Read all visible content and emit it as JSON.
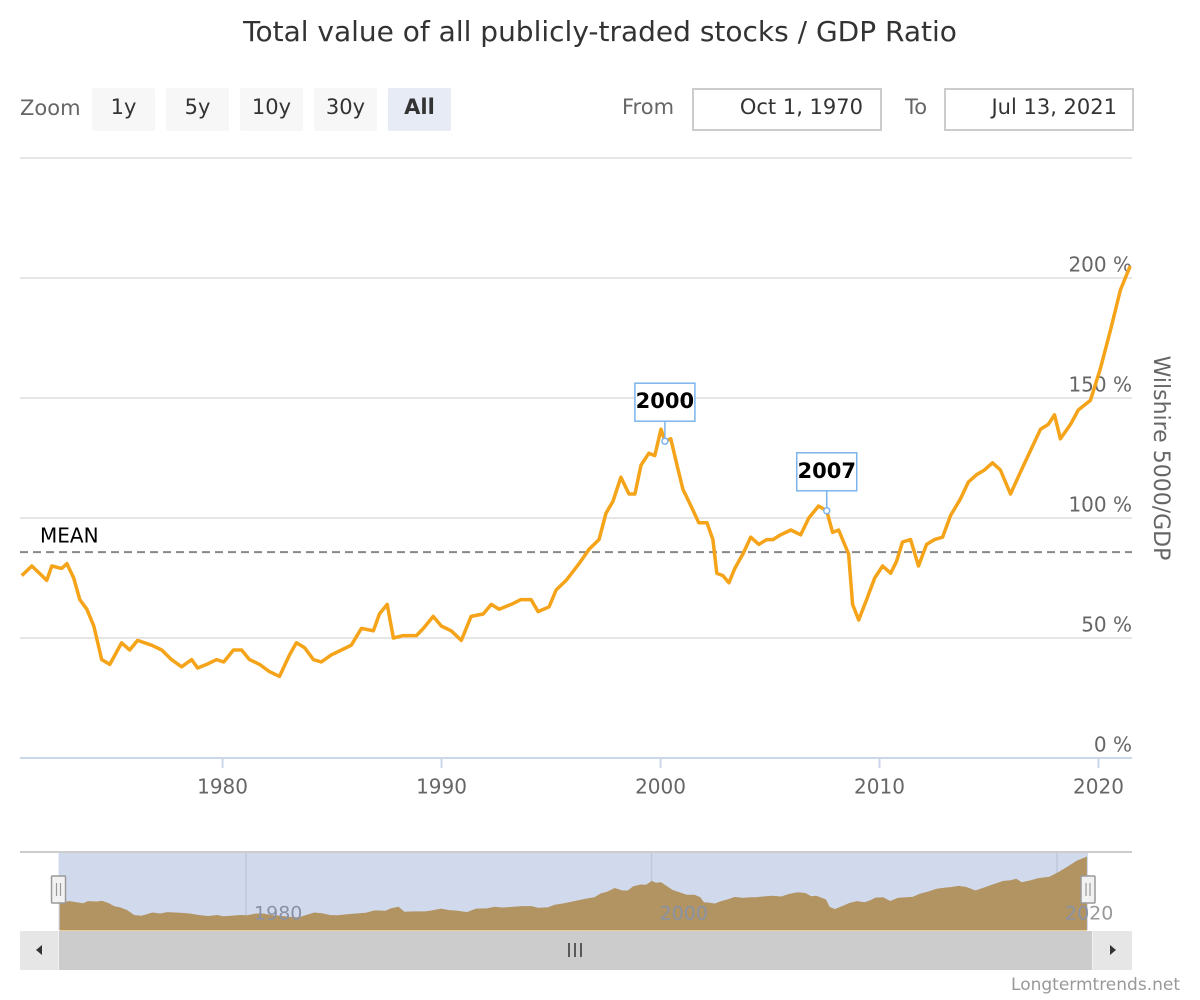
{
  "chart_data": {
    "type": "line",
    "title": "Total value of all publicly-traded stocks / GDP Ratio",
    "y_axis_title": "Wilshire 5000/GDP",
    "color": "#f5a319",
    "x": [
      1970.83,
      1971.29,
      1971.75,
      1971.97,
      1972.2,
      1972.66,
      1972.89,
      1973.2,
      1973.48,
      1973.8,
      1974.12,
      1974.48,
      1974.85,
      1975.39,
      1975.76,
      1976.12,
      1976.76,
      1977.22,
      1977.67,
      1978.13,
      1978.59,
      1978.86,
      1979.27,
      1979.73,
      1980.05,
      1980.5,
      1980.87,
      1981.23,
      1981.69,
      1982.14,
      1982.6,
      1983.06,
      1983.37,
      1983.74,
      1984.15,
      1984.51,
      1984.97,
      1985.43,
      1985.88,
      1986.34,
      1986.89,
      1987.16,
      1987.52,
      1987.8,
      1988.25,
      1988.85,
      1989.17,
      1989.62,
      1989.99,
      1990.44,
      1990.9,
      1991.35,
      1991.9,
      1992.27,
      1992.63,
      1993.18,
      1993.63,
      1994.09,
      1994.41,
      1994.91,
      1995.23,
      1995.69,
      1996.28,
      1996.74,
      1997.19,
      1997.51,
      1997.83,
      1998.19,
      1998.56,
      1998.83,
      1999.11,
      1999.47,
      1999.74,
      2000.02,
      2000.2,
      2000.47,
      2000.75,
      2001.02,
      2001.39,
      2001.75,
      2002.12,
      2002.39,
      2002.57,
      2002.85,
      2003.12,
      2003.39,
      2003.76,
      2004.12,
      2004.49,
      2004.85,
      2005.13,
      2005.49,
      2005.95,
      2006.4,
      2006.77,
      2007.22,
      2007.59,
      2007.86,
      2008.13,
      2008.59,
      2008.77,
      2009.05,
      2009.41,
      2009.78,
      2010.14,
      2010.51,
      2010.78,
      2011.05,
      2011.42,
      2011.78,
      2012.15,
      2012.51,
      2012.88,
      2013.24,
      2013.7,
      2014.06,
      2014.43,
      2014.79,
      2015.16,
      2015.52,
      2015.98,
      2016.43,
      2016.89,
      2017.35,
      2017.71,
      2017.99,
      2018.26,
      2018.72,
      2019.08,
      2019.63,
      2020.08,
      2020.54,
      2021.0,
      2021.45
    ],
    "values": [
      76,
      80,
      76,
      74,
      80,
      79,
      81,
      75,
      66,
      62,
      55,
      41,
      39,
      48,
      45,
      49,
      47,
      45,
      41,
      38,
      41,
      37.5,
      39,
      41,
      40,
      45,
      45,
      41,
      39,
      36,
      34,
      43,
      48,
      46,
      41,
      40,
      43,
      45,
      47,
      54,
      53,
      60,
      64,
      50,
      51,
      51,
      54,
      59,
      55,
      53,
      49,
      59,
      60,
      64,
      62,
      64,
      66,
      66,
      61,
      63,
      70,
      74,
      81,
      87,
      91,
      102,
      107,
      117,
      110,
      110,
      122,
      127,
      126,
      137,
      132,
      133,
      122,
      112,
      105,
      98,
      98,
      91,
      77,
      76,
      73,
      79,
      85,
      92,
      89,
      91,
      91,
      93,
      95,
      93,
      100,
      105,
      103,
      94,
      95,
      85,
      64,
      57.5,
      66,
      75,
      80,
      77,
      82,
      90,
      91,
      80,
      89,
      91,
      92,
      101,
      108,
      115,
      118,
      120,
      123,
      120,
      110,
      119,
      128,
      137,
      139,
      143,
      133,
      139,
      145,
      149,
      162,
      178,
      195,
      205
    ],
    "xlim": [
      1970.75,
      2021.53
    ],
    "xticks": [
      1980,
      1990,
      2000,
      2010,
      2020
    ],
    "ylim": [
      0,
      250
    ],
    "yticks": [
      {
        "value": 0,
        "label": "0 %"
      },
      {
        "value": 50,
        "label": "50 %"
      },
      {
        "value": 100,
        "label": "100 %"
      },
      {
        "value": 150,
        "label": "150 %"
      },
      {
        "value": 200,
        "label": "200 %"
      }
    ],
    "grid": true,
    "mean": {
      "label": "MEAN",
      "value": 85.8
    },
    "annotations": [
      {
        "label": "2000",
        "x": 2000.2,
        "y": 132
      },
      {
        "label": "2007",
        "x": 2007.59,
        "y": 103
      }
    ],
    "navigator": {
      "color": "#d39b3a",
      "xlim": [
        1968.85,
        2023.7
      ],
      "ylim": [
        0,
        220
      ],
      "xticks": [
        1980,
        2000,
        2020
      ]
    }
  },
  "range_selector": {
    "zoom_label": "Zoom",
    "buttons": [
      "1y",
      "5y",
      "10y",
      "30y",
      "All"
    ],
    "selected": 4,
    "from_label": "From",
    "from": "Oct 1, 1970",
    "to_label": "To",
    "to": "Jul 13, 2021"
  },
  "credits": "Longtermtrends.net"
}
